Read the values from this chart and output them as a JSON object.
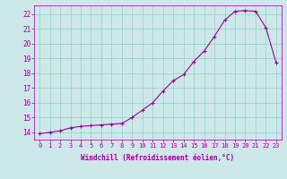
{
  "x": [
    0,
    1,
    2,
    3,
    4,
    5,
    6,
    7,
    8,
    9,
    10,
    11,
    12,
    13,
    14,
    15,
    16,
    17,
    18,
    19,
    20,
    21,
    22,
    23
  ],
  "y": [
    13.9,
    14.0,
    14.1,
    14.3,
    14.4,
    14.45,
    14.5,
    14.55,
    14.6,
    15.0,
    15.5,
    16.0,
    16.8,
    17.5,
    17.9,
    18.8,
    19.5,
    20.5,
    21.6,
    22.2,
    22.25,
    22.2,
    21.1,
    18.7
  ],
  "line_color": "#990099",
  "marker": "+",
  "bg_color": "#cce8e8",
  "grid_color": "#99cccc",
  "xlabel": "Windchill (Refroidissement éolien,°C)",
  "yticks": [
    14,
    15,
    16,
    17,
    18,
    19,
    20,
    21,
    22
  ],
  "xticks": [
    0,
    1,
    2,
    3,
    4,
    5,
    6,
    7,
    8,
    9,
    10,
    11,
    12,
    13,
    14,
    15,
    16,
    17,
    18,
    19,
    20,
    21,
    22,
    23
  ],
  "xlim": [
    -0.5,
    23.5
  ],
  "ylim": [
    13.5,
    22.6
  ],
  "label_color": "#990099",
  "font": "monospace",
  "tick_fontsize": 5,
  "xlabel_fontsize": 5.5
}
